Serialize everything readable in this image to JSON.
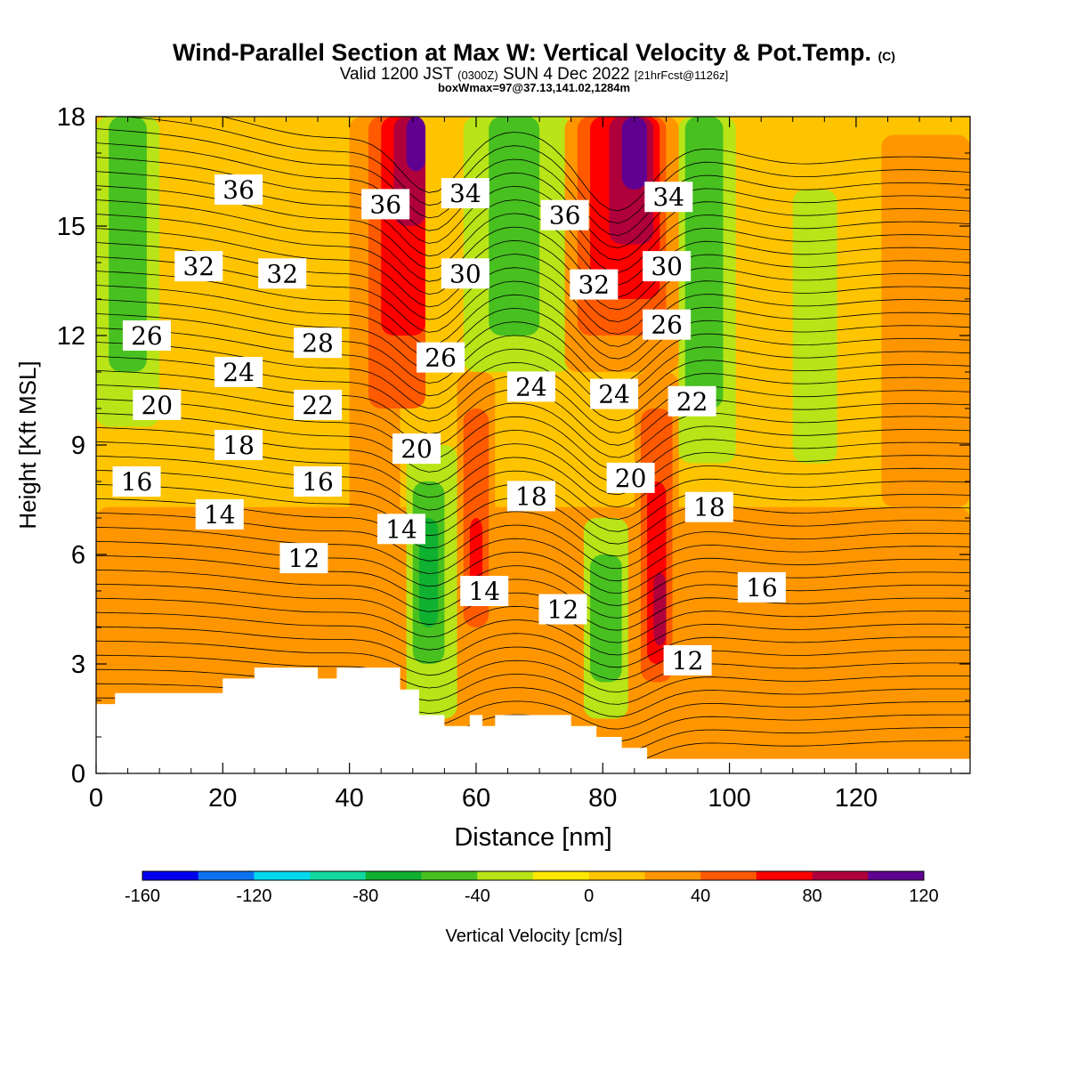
{
  "title": {
    "main": "Wind-Parallel Section at Max W: Vertical Velocity & Pot.Temp.",
    "copyright": "(C)",
    "valid_prefix": "Valid 1200 JST",
    "valid_z": "(0300Z)",
    "valid_date": "SUN 4 Dec 2022",
    "fcst": "[21hrFcst@1126z]",
    "box": "boxWmax=97@37.13,141.02,1284m"
  },
  "colorbar": {
    "label": "Vertical Velocity [cm/s]",
    "ticks": [
      "-160",
      "-120",
      "-80",
      "-40",
      "0",
      "40",
      "80",
      "120"
    ],
    "colors": [
      "#0000ee",
      "#0a72f0",
      "#00d8f0",
      "#10d8a0",
      "#10b030",
      "#48c020",
      "#b8e418",
      "#ffe800",
      "#ffc400",
      "#ff9600",
      "#ff5a00",
      "#ff0000",
      "#b0003c",
      "#600090"
    ]
  },
  "chart_data": {
    "type": "heatmap",
    "title": "Wind-Parallel Section at Max W: Vertical Velocity & Pot.Temp.",
    "xlabel": "Distance [nm]",
    "ylabel": "Height [Kft MSL]",
    "xlim": [
      0,
      138
    ],
    "ylim": [
      0,
      18
    ],
    "x_ticks": [
      "0",
      "20",
      "40",
      "60",
      "80",
      "100",
      "120"
    ],
    "y_ticks": [
      "0",
      "3",
      "6",
      "9",
      "12",
      "15",
      "18"
    ],
    "color_field": "Vertical Velocity [cm/s]",
    "color_levels": [
      -160,
      -140,
      -120,
      -100,
      -80,
      -60,
      -40,
      -20,
      0,
      20,
      40,
      60,
      80,
      100,
      120
    ],
    "contour_field": "Pot.Temp.",
    "contour_labels": [
      {
        "x": 22.5,
        "y": 16.0,
        "text": "36"
      },
      {
        "x": 45.7,
        "y": 15.6,
        "text": "36"
      },
      {
        "x": 58.3,
        "y": 15.9,
        "text": "34"
      },
      {
        "x": 74.0,
        "y": 15.3,
        "text": "36"
      },
      {
        "x": 90.4,
        "y": 15.8,
        "text": "34"
      },
      {
        "x": 16.2,
        "y": 13.9,
        "text": "32"
      },
      {
        "x": 29.4,
        "y": 13.7,
        "text": "32"
      },
      {
        "x": 58.3,
        "y": 13.7,
        "text": "30"
      },
      {
        "x": 78.6,
        "y": 13.4,
        "text": "32"
      },
      {
        "x": 90.1,
        "y": 13.9,
        "text": "30"
      },
      {
        "x": 8.0,
        "y": 12.0,
        "text": "26"
      },
      {
        "x": 35.0,
        "y": 11.8,
        "text": "28"
      },
      {
        "x": 54.4,
        "y": 11.4,
        "text": "26"
      },
      {
        "x": 90.1,
        "y": 12.3,
        "text": "26"
      },
      {
        "x": 22.5,
        "y": 11.0,
        "text": "24"
      },
      {
        "x": 68.7,
        "y": 10.6,
        "text": "24"
      },
      {
        "x": 81.8,
        "y": 10.4,
        "text": "24"
      },
      {
        "x": 94.1,
        "y": 10.2,
        "text": "22"
      },
      {
        "x": 9.6,
        "y": 10.1,
        "text": "20"
      },
      {
        "x": 35.0,
        "y": 10.1,
        "text": "22"
      },
      {
        "x": 22.5,
        "y": 9.0,
        "text": "18"
      },
      {
        "x": 50.6,
        "y": 8.9,
        "text": "20"
      },
      {
        "x": 84.4,
        "y": 8.1,
        "text": "20"
      },
      {
        "x": 6.4,
        "y": 8.0,
        "text": "16"
      },
      {
        "x": 35.0,
        "y": 8.0,
        "text": "16"
      },
      {
        "x": 68.7,
        "y": 7.6,
        "text": "18"
      },
      {
        "x": 96.8,
        "y": 7.3,
        "text": "18"
      },
      {
        "x": 19.5,
        "y": 7.1,
        "text": "14"
      },
      {
        "x": 48.2,
        "y": 6.7,
        "text": "14"
      },
      {
        "x": 32.8,
        "y": 5.9,
        "text": "12"
      },
      {
        "x": 61.3,
        "y": 5.0,
        "text": "14"
      },
      {
        "x": 105.1,
        "y": 5.1,
        "text": "16"
      },
      {
        "x": 73.7,
        "y": 4.5,
        "text": "12"
      },
      {
        "x": 93.4,
        "y": 3.1,
        "text": "12"
      }
    ],
    "cells": [
      {
        "x0": 0,
        "x1": 138,
        "y0": 0,
        "y1": 18,
        "w": 10
      },
      {
        "x0": 0,
        "x1": 138,
        "y0": 0,
        "y1": 7.3,
        "w": 30
      },
      {
        "x0": 124,
        "x1": 138,
        "y0": 7.3,
        "y1": 17.5,
        "w": 30
      },
      {
        "x0": 0,
        "x1": 10,
        "y0": 9.5,
        "y1": 18,
        "w": -30
      },
      {
        "x0": 2,
        "x1": 8,
        "y0": 11,
        "y1": 18,
        "w": -50
      },
      {
        "x0": 40,
        "x1": 48,
        "y0": 7,
        "y1": 18,
        "w": 30
      },
      {
        "x0": 43,
        "x1": 52,
        "y0": 10,
        "y1": 18,
        "w": 50
      },
      {
        "x0": 45,
        "x1": 52,
        "y0": 12,
        "y1": 18,
        "w": 70
      },
      {
        "x0": 47,
        "x1": 52,
        "y0": 15,
        "y1": 18,
        "w": 90
      },
      {
        "x0": 49,
        "x1": 52,
        "y0": 16.5,
        "y1": 18,
        "w": 110
      },
      {
        "x0": 49,
        "x1": 57,
        "y0": 1.5,
        "y1": 9,
        "w": -30
      },
      {
        "x0": 50,
        "x1": 55,
        "y0": 3,
        "y1": 8,
        "w": -50
      },
      {
        "x0": 51,
        "x1": 54,
        "y0": 4,
        "y1": 7,
        "w": -70
      },
      {
        "x0": 57,
        "x1": 63,
        "y0": 2.5,
        "y1": 11,
        "w": 30
      },
      {
        "x0": 58,
        "x1": 62,
        "y0": 4,
        "y1": 10,
        "w": 50
      },
      {
        "x0": 59,
        "x1": 61,
        "y0": 5,
        "y1": 7,
        "w": 70
      },
      {
        "x0": 58,
        "x1": 75,
        "y0": 11,
        "y1": 18,
        "w": -30
      },
      {
        "x0": 62,
        "x1": 70,
        "y0": 12,
        "y1": 18,
        "w": -50
      },
      {
        "x0": 77,
        "x1": 84,
        "y0": 1.5,
        "y1": 7,
        "w": -30
      },
      {
        "x0": 78,
        "x1": 83,
        "y0": 2.5,
        "y1": 6,
        "w": -50
      },
      {
        "x0": 74,
        "x1": 92,
        "y0": 11,
        "y1": 18,
        "w": 30
      },
      {
        "x0": 76,
        "x1": 90,
        "y0": 12,
        "y1": 18,
        "w": 50
      },
      {
        "x0": 78,
        "x1": 89,
        "y0": 13,
        "y1": 18,
        "w": 70
      },
      {
        "x0": 81,
        "x1": 88,
        "y0": 14.5,
        "y1": 18,
        "w": 90
      },
      {
        "x0": 83,
        "x1": 87,
        "y0": 16,
        "y1": 18,
        "w": 110
      },
      {
        "x0": 85,
        "x1": 92,
        "y0": 1.5,
        "y1": 11,
        "w": 30
      },
      {
        "x0": 86,
        "x1": 91,
        "y0": 2.5,
        "y1": 10,
        "w": 50
      },
      {
        "x0": 87,
        "x1": 90,
        "y0": 3,
        "y1": 8,
        "w": 70
      },
      {
        "x0": 88,
        "x1": 90,
        "y0": 3.5,
        "y1": 5.5,
        "w": 90
      },
      {
        "x0": 92,
        "x1": 101,
        "y0": 8.5,
        "y1": 18,
        "w": -30
      },
      {
        "x0": 93,
        "x1": 99,
        "y0": 10,
        "y1": 18,
        "w": -50
      },
      {
        "x0": 110,
        "x1": 117,
        "y0": 8.5,
        "y1": 16,
        "w": -30
      }
    ],
    "terrain": [
      [
        0,
        1.9
      ],
      [
        3,
        1.9
      ],
      [
        3,
        2.2
      ],
      [
        20,
        2.2
      ],
      [
        20,
        2.6
      ],
      [
        25,
        2.6
      ],
      [
        25,
        2.9
      ],
      [
        35,
        2.9
      ],
      [
        35,
        2.6
      ],
      [
        38,
        2.6
      ],
      [
        38,
        2.9
      ],
      [
        48,
        2.9
      ],
      [
        48,
        2.3
      ],
      [
        51,
        2.3
      ],
      [
        51,
        1.6
      ],
      [
        55,
        1.6
      ],
      [
        55,
        1.3
      ],
      [
        59,
        1.3
      ],
      [
        59,
        1.6
      ],
      [
        61,
        1.6
      ],
      [
        61,
        1.3
      ],
      [
        63,
        1.3
      ],
      [
        63,
        1.6
      ],
      [
        75,
        1.6
      ],
      [
        75,
        1.3
      ],
      [
        79,
        1.3
      ],
      [
        79,
        1.0
      ],
      [
        83,
        1.0
      ],
      [
        83,
        0.7
      ],
      [
        87,
        0.7
      ],
      [
        87,
        0.4
      ],
      [
        138,
        0.4
      ]
    ]
  }
}
